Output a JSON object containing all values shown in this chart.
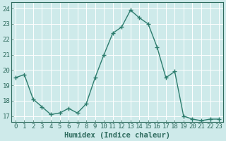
{
  "x": [
    0,
    1,
    2,
    3,
    4,
    5,
    6,
    7,
    8,
    9,
    10,
    11,
    12,
    13,
    14,
    15,
    16,
    17,
    18,
    19,
    20,
    21,
    22,
    23
  ],
  "y": [
    19.5,
    19.7,
    18.1,
    17.6,
    17.1,
    17.2,
    17.5,
    17.2,
    17.8,
    19.5,
    21.0,
    22.4,
    22.8,
    23.9,
    23.4,
    23.0,
    21.5,
    19.5,
    19.9,
    17.0,
    16.8,
    16.7,
    16.8,
    16.8
  ],
  "line_color": "#2e7d6e",
  "marker": "+",
  "marker_size": 4,
  "marker_linewidth": 1.0,
  "linewidth": 1.0,
  "xlabel": "Humidex (Indice chaleur)",
  "xlim": [
    -0.5,
    23.5
  ],
  "ylim": [
    16.6,
    24.4
  ],
  "yticks": [
    17,
    18,
    19,
    20,
    21,
    22,
    23,
    24
  ],
  "xticks": [
    0,
    1,
    2,
    3,
    4,
    5,
    6,
    7,
    8,
    9,
    10,
    11,
    12,
    13,
    14,
    15,
    16,
    17,
    18,
    19,
    20,
    21,
    22,
    23
  ],
  "background_color": "#ceeaea",
  "grid_color": "#ffffff",
  "tick_color": "#2e6b5e",
  "label_color": "#2e6b5e",
  "font_size": 6.5,
  "xlabel_fontsize": 7.5
}
